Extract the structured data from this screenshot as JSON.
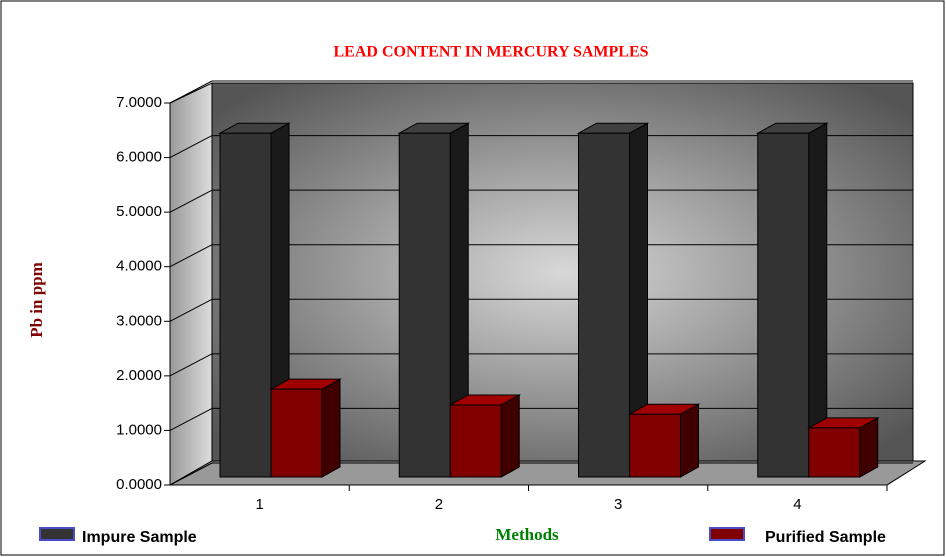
{
  "chart_data": {
    "type": "bar3d",
    "title": "LEAD CONTENT IN MERCURY SAMPLES",
    "x_label": "Methods",
    "y_label": "Pb in ppm",
    "categories": [
      "1",
      "2",
      "3",
      "4"
    ],
    "series": [
      {
        "name": "Impure Sample",
        "color": "#333333",
        "values": [
          6.3,
          6.3,
          6.3,
          6.3
        ]
      },
      {
        "name": "Purified Sample",
        "color": "#800000",
        "values": [
          1.61,
          1.32,
          1.15,
          0.9
        ]
      }
    ],
    "ylim": [
      0,
      7
    ],
    "yticks": [
      {
        "value": 0,
        "label": "0.0000"
      },
      {
        "value": 1,
        "label": "1.0000"
      },
      {
        "value": 2,
        "label": "2.0000"
      },
      {
        "value": 3,
        "label": "3.0000"
      },
      {
        "value": 4,
        "label": "4.0000"
      },
      {
        "value": 5,
        "label": "5.0000"
      },
      {
        "value": 6,
        "label": "6.0000"
      },
      {
        "value": 7,
        "label": "7.0000"
      }
    ],
    "grid": true
  }
}
